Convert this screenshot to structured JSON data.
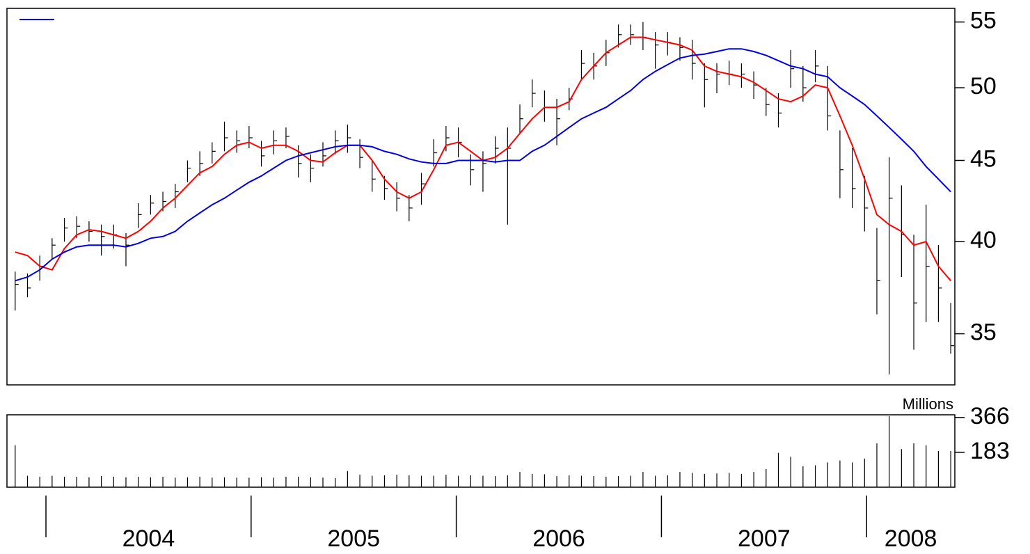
{
  "chart_data": {
    "type": "ohlc",
    "x": [
      2003.85,
      2003.91,
      2003.97,
      2004.03,
      2004.09,
      2004.15,
      2004.21,
      2004.27,
      2004.33,
      2004.39,
      2004.45,
      2004.51,
      2004.57,
      2004.63,
      2004.69,
      2004.75,
      2004.81,
      2004.87,
      2004.93,
      2004.99,
      2005.05,
      2005.11,
      2005.17,
      2005.23,
      2005.29,
      2005.35,
      2005.41,
      2005.47,
      2005.53,
      2005.59,
      2005.65,
      2005.71,
      2005.77,
      2005.83,
      2005.89,
      2005.95,
      2006.01,
      2006.07,
      2006.13,
      2006.19,
      2006.25,
      2006.31,
      2006.37,
      2006.43,
      2006.49,
      2006.55,
      2006.61,
      2006.67,
      2006.73,
      2006.79,
      2006.85,
      2006.91,
      2006.97,
      2007.03,
      2007.09,
      2007.15,
      2007.21,
      2007.27,
      2007.33,
      2007.39,
      2007.45,
      2007.51,
      2007.57,
      2007.63,
      2007.69,
      2007.75,
      2007.81,
      2007.87,
      2007.93,
      2007.99,
      2008.05,
      2008.11,
      2008.17,
      2008.23,
      2008.29,
      2008.35,
      2008.41
    ],
    "high": [
      38.3,
      38.2,
      39.2,
      40.2,
      41.4,
      41.5,
      41.2,
      41.0,
      41.0,
      40.5,
      42.3,
      42.8,
      43.0,
      43.5,
      45.0,
      45.6,
      46.2,
      47.6,
      47.0,
      47.3,
      46.3,
      47.0,
      47.2,
      46.0,
      45.4,
      46.2,
      47.0,
      47.4,
      46.4,
      45.0,
      44.0,
      43.6,
      42.8,
      44.2,
      46.4,
      47.3,
      47.2,
      45.4,
      45.6,
      46.6,
      47.2,
      48.8,
      50.6,
      49.8,
      49.2,
      50.0,
      52.8,
      52.6,
      53.6,
      54.8,
      54.8,
      55.0,
      54.2,
      54.2,
      53.8,
      53.6,
      51.8,
      51.8,
      52.0,
      51.8,
      51.2,
      50.0,
      49.6,
      52.8,
      51.6,
      52.8,
      51.6,
      47.0,
      45.8,
      44.0,
      40.8,
      45.2,
      43.4,
      40.4,
      42.2,
      39.8,
      36.6
    ],
    "low": [
      36.2,
      36.9,
      37.8,
      39.0,
      40.0,
      40.2,
      40.0,
      39.2,
      39.6,
      38.6,
      40.8,
      41.6,
      41.8,
      42.0,
      43.6,
      44.0,
      44.8,
      45.6,
      45.5,
      45.8,
      44.6,
      45.4,
      45.8,
      43.9,
      43.6,
      44.6,
      45.4,
      45.5,
      44.5,
      43.0,
      42.5,
      41.8,
      41.2,
      42.2,
      44.6,
      45.6,
      45.2,
      43.4,
      43.0,
      44.8,
      41.0,
      46.8,
      48.6,
      47.6,
      46.0,
      48.4,
      50.6,
      50.6,
      51.6,
      53.0,
      53.2,
      52.8,
      51.4,
      52.4,
      52.0,
      50.6,
      48.6,
      49.6,
      50.2,
      50.0,
      49.2,
      48.0,
      47.2,
      50.0,
      49.0,
      50.4,
      47.0,
      42.6,
      42.0,
      40.6,
      36.0,
      33.0,
      38.0,
      34.2,
      35.6,
      35.6,
      34.0
    ],
    "close": [
      37.6,
      37.4,
      38.6,
      39.8,
      40.8,
      40.9,
      40.6,
      40.3,
      40.4,
      39.8,
      41.6,
      42.3,
      42.4,
      43.0,
      44.5,
      44.8,
      45.6,
      46.5,
      46.3,
      46.5,
      45.3,
      46.3,
      46.6,
      44.8,
      44.5,
      45.3,
      46.3,
      46.5,
      45.2,
      43.8,
      43.2,
      42.6,
      42.0,
      43.5,
      45.5,
      46.5,
      46.2,
      44.4,
      44.8,
      45.8,
      45.8,
      47.8,
      49.6,
      48.6,
      47.8,
      49.2,
      51.8,
      51.6,
      52.6,
      54.0,
      54.0,
      53.8,
      53.2,
      53.4,
      53.0,
      51.8,
      50.6,
      51.0,
      51.0,
      51.0,
      50.2,
      48.8,
      48.2,
      51.4,
      50.0,
      51.6,
      48.0,
      44.4,
      43.2,
      42.0,
      37.8,
      42.6,
      40.4,
      36.6,
      38.6,
      37.4,
      34.4
    ],
    "series": [
      {
        "color": "#ff0000",
        "values": [
          39.4,
          39.2,
          38.6,
          38.4,
          39.6,
          40.4,
          40.7,
          40.6,
          40.4,
          40.2,
          40.6,
          41.2,
          42.0,
          42.6,
          43.4,
          44.2,
          44.6,
          45.4,
          46.0,
          46.2,
          45.8,
          46.0,
          46.0,
          45.6,
          45.0,
          44.9,
          45.5,
          46.0,
          46.0,
          45.0,
          43.8,
          43.0,
          42.6,
          43.0,
          44.4,
          46.0,
          46.2,
          45.6,
          45.0,
          45.2,
          45.8,
          46.8,
          47.8,
          48.6,
          48.6,
          49.0,
          50.6,
          51.6,
          52.6,
          53.2,
          53.8,
          53.8,
          53.6,
          53.4,
          53.2,
          52.8,
          51.6,
          51.2,
          51.0,
          50.8,
          50.4,
          49.8,
          49.2,
          49.0,
          49.4,
          50.2,
          50.0,
          48.0,
          46.0,
          43.8,
          41.6,
          41.0,
          40.6,
          39.8,
          40.0,
          38.6,
          37.8
        ]
      },
      {
        "color": "#0000e0",
        "values": [
          37.8,
          38.0,
          38.4,
          39.0,
          39.4,
          39.7,
          39.8,
          39.8,
          39.8,
          39.7,
          39.9,
          40.2,
          40.3,
          40.6,
          41.2,
          41.7,
          42.2,
          42.6,
          43.1,
          43.6,
          44.0,
          44.5,
          45.0,
          45.3,
          45.5,
          45.7,
          45.9,
          46.0,
          46.0,
          45.9,
          45.6,
          45.4,
          45.1,
          44.9,
          44.8,
          44.8,
          45.0,
          45.0,
          45.0,
          44.9,
          45.0,
          45.0,
          45.6,
          46.0,
          46.6,
          47.2,
          47.8,
          48.2,
          48.6,
          49.2,
          49.8,
          50.6,
          51.2,
          51.7,
          52.2,
          52.4,
          52.5,
          52.7,
          52.9,
          52.9,
          52.7,
          52.4,
          52.0,
          51.6,
          51.4,
          51.0,
          50.8,
          50.0,
          49.4,
          48.8,
          48.0,
          47.2,
          46.4,
          45.6,
          44.6,
          43.8,
          43.0
        ]
      }
    ],
    "volume": [
      220,
      60,
      55,
      60,
      55,
      55,
      52,
      58,
      55,
      52,
      55,
      52,
      55,
      50,
      52,
      55,
      50,
      52,
      50,
      50,
      52,
      50,
      55,
      55,
      52,
      50,
      48,
      85,
      65,
      60,
      62,
      65,
      62,
      60,
      60,
      65,
      60,
      62,
      60,
      58,
      62,
      80,
      70,
      68,
      58,
      62,
      60,
      58,
      55,
      58,
      60,
      80,
      60,
      62,
      80,
      75,
      70,
      72,
      75,
      70,
      80,
      95,
      180,
      160,
      110,
      115,
      130,
      140,
      130,
      150,
      230,
      373,
      200,
      230,
      220,
      190,
      190
    ],
    "bar_color": "#000000",
    "log_scale": true,
    "xlim": [
      2003.81,
      2008.43
    ],
    "xticks": [
      2004,
      2005,
      2006,
      2007,
      2008
    ],
    "ylim": [
      32.5,
      56.1
    ],
    "yticks": [
      35,
      40,
      45,
      50,
      55
    ],
    "volume_label": "Millions",
    "volume_ylim": [
      0,
      380
    ],
    "volume_yticks": [
      183,
      366
    ]
  }
}
